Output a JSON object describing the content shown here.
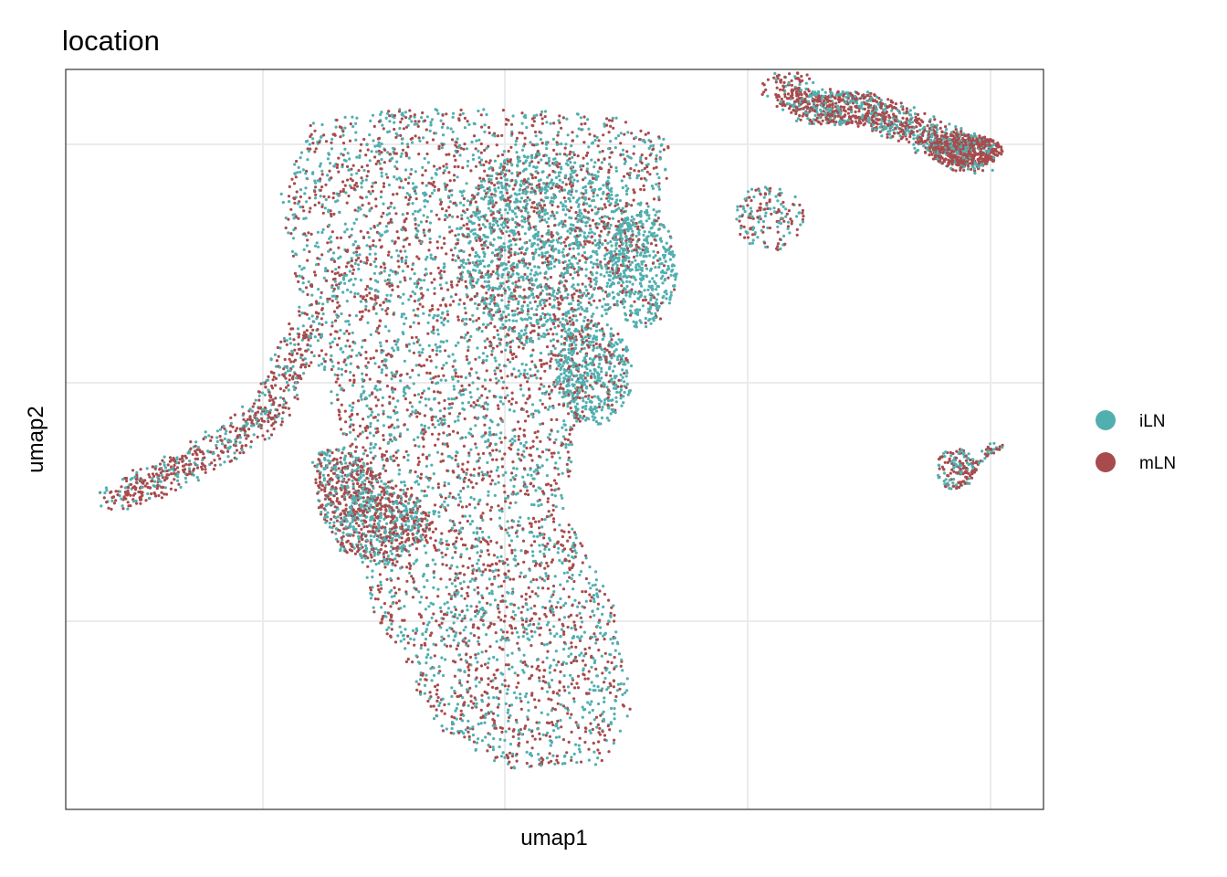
{
  "chart_data": {
    "type": "scatter",
    "title": "location",
    "xlabel": "umap1",
    "ylabel": "umap2",
    "xlim": [
      0,
      10
    ],
    "ylim": [
      0,
      10
    ],
    "grid": true,
    "legend_position": "right",
    "x_ticks_labeled": false,
    "y_ticks_labeled": false,
    "series": [
      {
        "name": "iLN",
        "color": "#52AFB0"
      },
      {
        "name": "mLN",
        "color": "#A84B4C"
      }
    ],
    "regions": [
      {
        "shape": "polygon",
        "iln_share": 0.5,
        "count": 5200,
        "outline": [
          [
            2.5,
            9.3
          ],
          [
            3.6,
            9.5
          ],
          [
            5.6,
            9.4
          ],
          [
            6.2,
            9.0
          ],
          [
            6.1,
            8.0
          ],
          [
            5.4,
            6.8
          ],
          [
            5.2,
            5.0
          ],
          [
            5.1,
            4.0
          ],
          [
            5.6,
            2.8
          ],
          [
            5.8,
            1.4
          ],
          [
            5.5,
            0.6
          ],
          [
            4.5,
            0.55
          ],
          [
            3.8,
            1.1
          ],
          [
            3.1,
            2.8
          ],
          [
            2.8,
            5.2
          ],
          [
            2.4,
            6.5
          ],
          [
            2.2,
            8.3
          ]
        ]
      },
      {
        "shape": "ellipse",
        "iln_share": 0.8,
        "count": 1100,
        "cx": 4.9,
        "cy": 7.6,
        "rx": 0.9,
        "ry": 1.3
      },
      {
        "shape": "ellipse",
        "iln_share": 0.85,
        "count": 450,
        "cx": 5.9,
        "cy": 7.3,
        "rx": 0.35,
        "ry": 0.8
      },
      {
        "shape": "ellipse",
        "iln_share": 0.75,
        "count": 500,
        "cx": 5.4,
        "cy": 5.9,
        "rx": 0.4,
        "ry": 0.7
      },
      {
        "shape": "polygon",
        "iln_share": 0.45,
        "count": 900,
        "outline": [
          [
            3.6,
            4.2
          ],
          [
            3.8,
            3.8
          ],
          [
            3.3,
            3.3
          ],
          [
            2.8,
            3.5
          ],
          [
            2.6,
            4.0
          ],
          [
            2.5,
            4.8
          ],
          [
            2.8,
            4.9
          ]
        ]
      },
      {
        "shape": "polyline",
        "iln_share": 0.35,
        "count": 1200,
        "width": 0.42,
        "path": [
          [
            7.3,
            9.8
          ],
          [
            7.7,
            9.45
          ],
          [
            8.1,
            9.5
          ],
          [
            8.5,
            9.3
          ],
          [
            9.0,
            9.0
          ],
          [
            9.3,
            8.8
          ]
        ]
      },
      {
        "shape": "ellipse",
        "iln_share": 0.15,
        "count": 500,
        "cx": 9.2,
        "cy": 8.9,
        "rx": 0.38,
        "ry": 0.22
      },
      {
        "shape": "ellipse",
        "iln_share": 0.4,
        "count": 160,
        "cx": 7.2,
        "cy": 8.0,
        "rx": 0.35,
        "ry": 0.45
      },
      {
        "shape": "polyline",
        "iln_share": 0.35,
        "count": 650,
        "width": 0.38,
        "path": [
          [
            0.5,
            4.2
          ],
          [
            1.0,
            4.5
          ],
          [
            1.6,
            4.9
          ],
          [
            2.1,
            5.4
          ],
          [
            2.45,
            6.5
          ]
        ]
      },
      {
        "shape": "ellipse",
        "iln_share": 0.4,
        "count": 140,
        "cx": 9.1,
        "cy": 4.6,
        "rx": 0.2,
        "ry": 0.28
      },
      {
        "shape": "polyline",
        "iln_share": 0.3,
        "count": 60,
        "width": 0.12,
        "path": [
          [
            9.2,
            4.55
          ],
          [
            9.55,
            4.95
          ]
        ]
      }
    ]
  }
}
